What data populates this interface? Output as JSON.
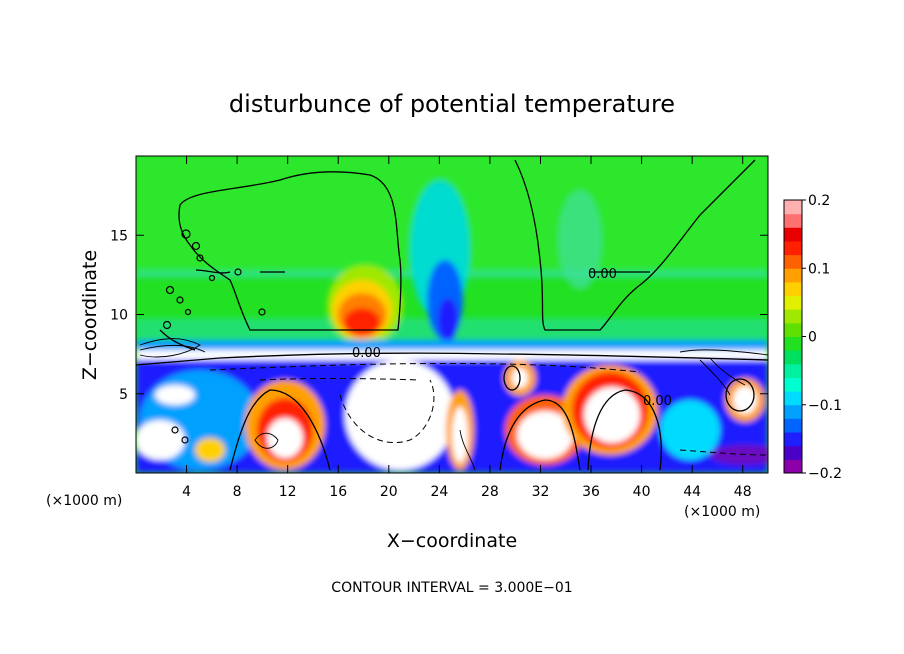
{
  "chart_data": {
    "type": "heatmap",
    "title": "disturbunce of potential temperature",
    "xlabel": "X−coordinate",
    "ylabel": "Z−coordinate",
    "x_unit": "(×1000 m)",
    "x_unit_right": "(×1000 m)",
    "xlim": [
      0,
      50
    ],
    "ylim": [
      0,
      20
    ],
    "x_ticks": [
      4,
      8,
      12,
      16,
      20,
      24,
      28,
      32,
      36,
      40,
      44,
      48
    ],
    "y_ticks": [
      5,
      10,
      15
    ],
    "colorbar": {
      "range": [
        -0.2,
        0.2
      ],
      "ticks": [
        {
          "value": 0.2,
          "label": "0.2"
        },
        {
          "value": 0.1,
          "label": "0.1"
        },
        {
          "value": 0,
          "label": "0"
        },
        {
          "value": -0.1,
          "label": "−0.1"
        },
        {
          "value": -0.2,
          "label": "−0.2"
        }
      ],
      "colors": [
        "#8b00a8",
        "#4b00c8",
        "#1e1eff",
        "#0064ff",
        "#00a0ff",
        "#00dcff",
        "#00ffd0",
        "#00f0a0",
        "#00e060",
        "#20e020",
        "#60e000",
        "#a0e800",
        "#e0f000",
        "#ffd000",
        "#ffa000",
        "#ff6000",
        "#ff2000",
        "#e80000",
        "#ff7070",
        "#ffb0b0"
      ]
    },
    "contour_labels": [
      "0.00",
      "0.00",
      "0.00"
    ],
    "footnote": "CONTOUR INTERVAL = 3.000E−01"
  }
}
